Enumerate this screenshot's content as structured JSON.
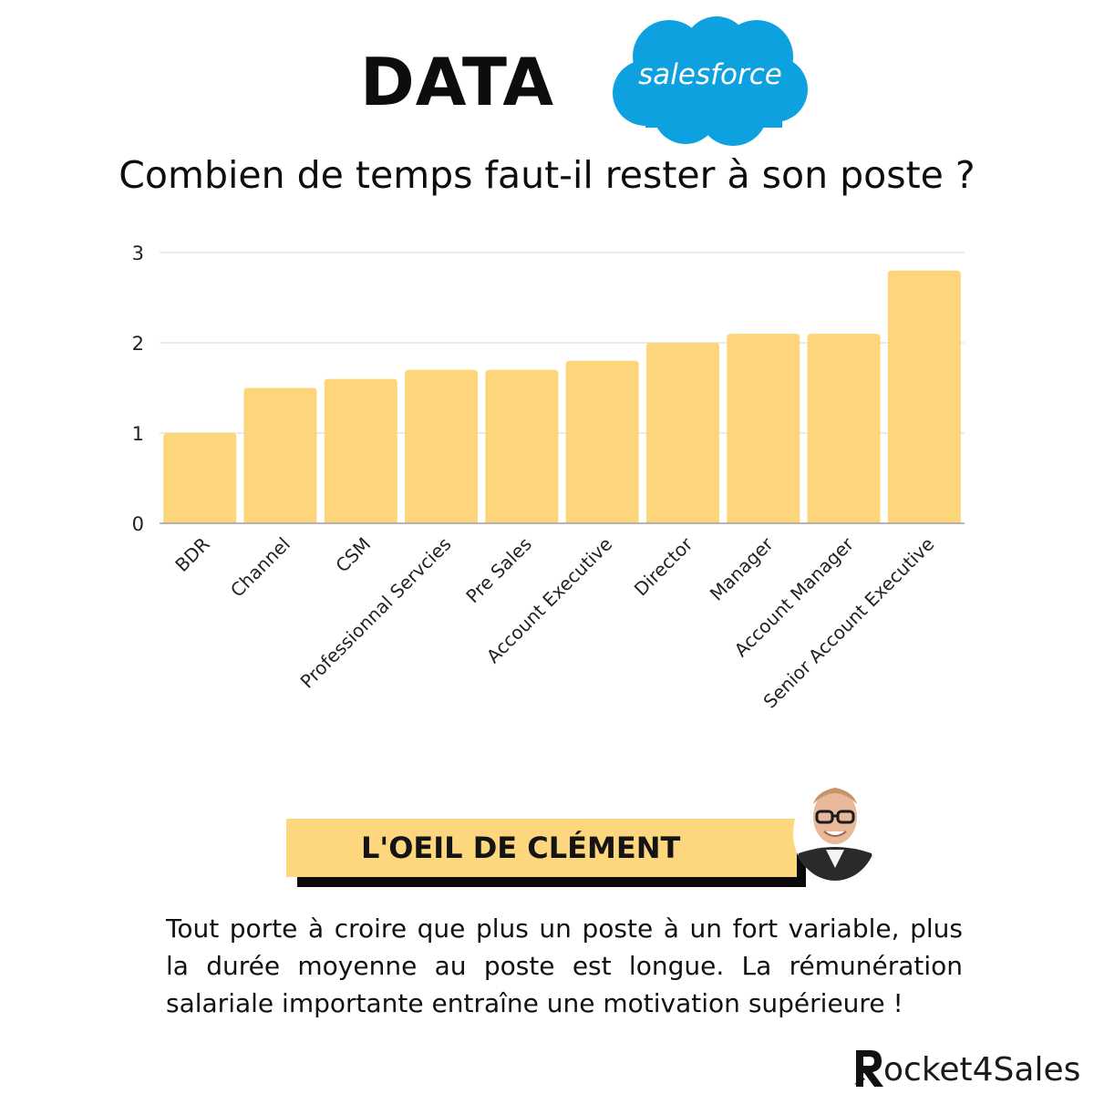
{
  "header": {
    "title": "DATA",
    "logo_text": "salesforce",
    "logo_color": "#0ea1e0"
  },
  "subtitle": "Combien de temps faut-il rester à son poste ?",
  "chart_data": {
    "type": "bar",
    "categories": [
      "BDR",
      "Channel",
      "CSM",
      "Professionnal Servcies",
      "Pre Sales",
      "Account Executive",
      "Director",
      "Manager",
      "Account Manager",
      "Senior Account Executive"
    ],
    "values": [
      1.0,
      1.5,
      1.6,
      1.7,
      1.7,
      1.8,
      2.0,
      2.1,
      2.1,
      2.8
    ],
    "ylim": [
      0,
      3
    ],
    "yticks": [
      "0",
      "1",
      "2",
      "3"
    ],
    "grid": true,
    "bar_color": "#fdd67b"
  },
  "callout": {
    "title": "L'OEIL DE CLÉMENT",
    "text": "Tout porte à croire que plus un poste à un fort variable, plus la durée moyenne au poste est longue. La rémunération salariale importante entraîne une motivation supérieure !"
  },
  "brand": {
    "text": "ocket4Sales",
    "icon": "rocket-r-icon"
  }
}
